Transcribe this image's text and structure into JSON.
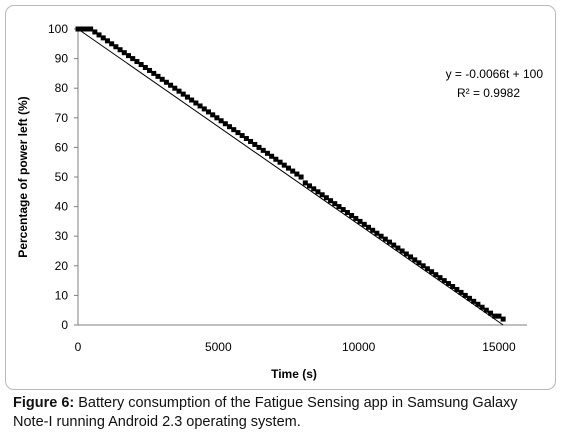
{
  "chart_data": {
    "type": "scatter",
    "title": "",
    "xlabel": "Time (s)",
    "ylabel": "Percentage of power left (%)",
    "xlim": [
      0,
      16000
    ],
    "ylim": [
      0,
      100
    ],
    "x_ticks": [
      0,
      5000,
      10000,
      15000
    ],
    "y_ticks": [
      0,
      10,
      20,
      30,
      40,
      50,
      60,
      70,
      80,
      90,
      100
    ],
    "grid": false,
    "legend": "none",
    "series": [
      {
        "name": "",
        "marker": "square",
        "color": "#000000",
        "x": [
          0,
          150,
          300,
          450,
          600,
          750,
          900,
          1050,
          1200,
          1350,
          1500,
          1650,
          1800,
          1950,
          2100,
          2250,
          2400,
          2550,
          2700,
          2850,
          3000,
          3150,
          3300,
          3450,
          3600,
          3750,
          3900,
          4050,
          4200,
          4350,
          4500,
          4650,
          4800,
          4950,
          5100,
          5250,
          5400,
          5550,
          5700,
          5850,
          6000,
          6150,
          6300,
          6450,
          6600,
          6750,
          6900,
          7050,
          7200,
          7350,
          7500,
          7650,
          7800,
          7950,
          8100,
          8250,
          8400,
          8550,
          8700,
          8850,
          9000,
          9150,
          9300,
          9450,
          9600,
          9750,
          9900,
          10050,
          10200,
          10350,
          10500,
          10650,
          10800,
          10950,
          11100,
          11250,
          11400,
          11550,
          11700,
          11850,
          12000,
          12150,
          12300,
          12450,
          12600,
          12750,
          12900,
          13050,
          13200,
          13350,
          13500,
          13650,
          13800,
          13950,
          14100,
          14250,
          14400,
          14550,
          14700,
          14850,
          15000,
          15150
        ],
        "y": [
          100,
          100,
          100,
          100,
          99,
          98,
          97,
          96,
          95,
          94,
          93,
          92,
          91,
          90,
          89,
          88,
          87,
          86,
          85,
          84,
          83,
          82,
          81,
          80,
          79,
          78,
          77,
          76,
          75,
          74,
          73,
          72,
          71,
          70,
          69,
          68,
          67,
          66,
          65,
          64,
          63,
          62,
          61,
          60,
          59,
          58,
          57,
          56,
          55,
          54,
          53,
          52,
          51,
          50,
          48,
          47,
          46,
          45,
          44,
          43,
          42,
          41,
          40,
          39,
          38,
          37,
          36,
          35,
          34,
          33,
          32,
          31,
          30,
          29,
          28,
          27,
          26,
          25,
          24,
          23,
          22,
          21,
          20,
          19,
          18,
          17,
          16,
          15,
          14,
          13,
          12,
          11,
          10,
          9,
          8,
          7,
          6,
          5,
          4,
          3,
          3,
          2
        ]
      }
    ],
    "trendline": {
      "type": "linear",
      "slope": -0.0066,
      "intercept": 100,
      "color": "#000000",
      "equation_label": "y = -0.0066t + 100",
      "r2_label": "R² = 0.9982",
      "placement": "top-right"
    }
  },
  "caption": {
    "label": "Figure 6:",
    "text": " Battery consumption of the Fatigue Sensing app in Samsung Galaxy Note-I running Android 2.3 operating system."
  }
}
